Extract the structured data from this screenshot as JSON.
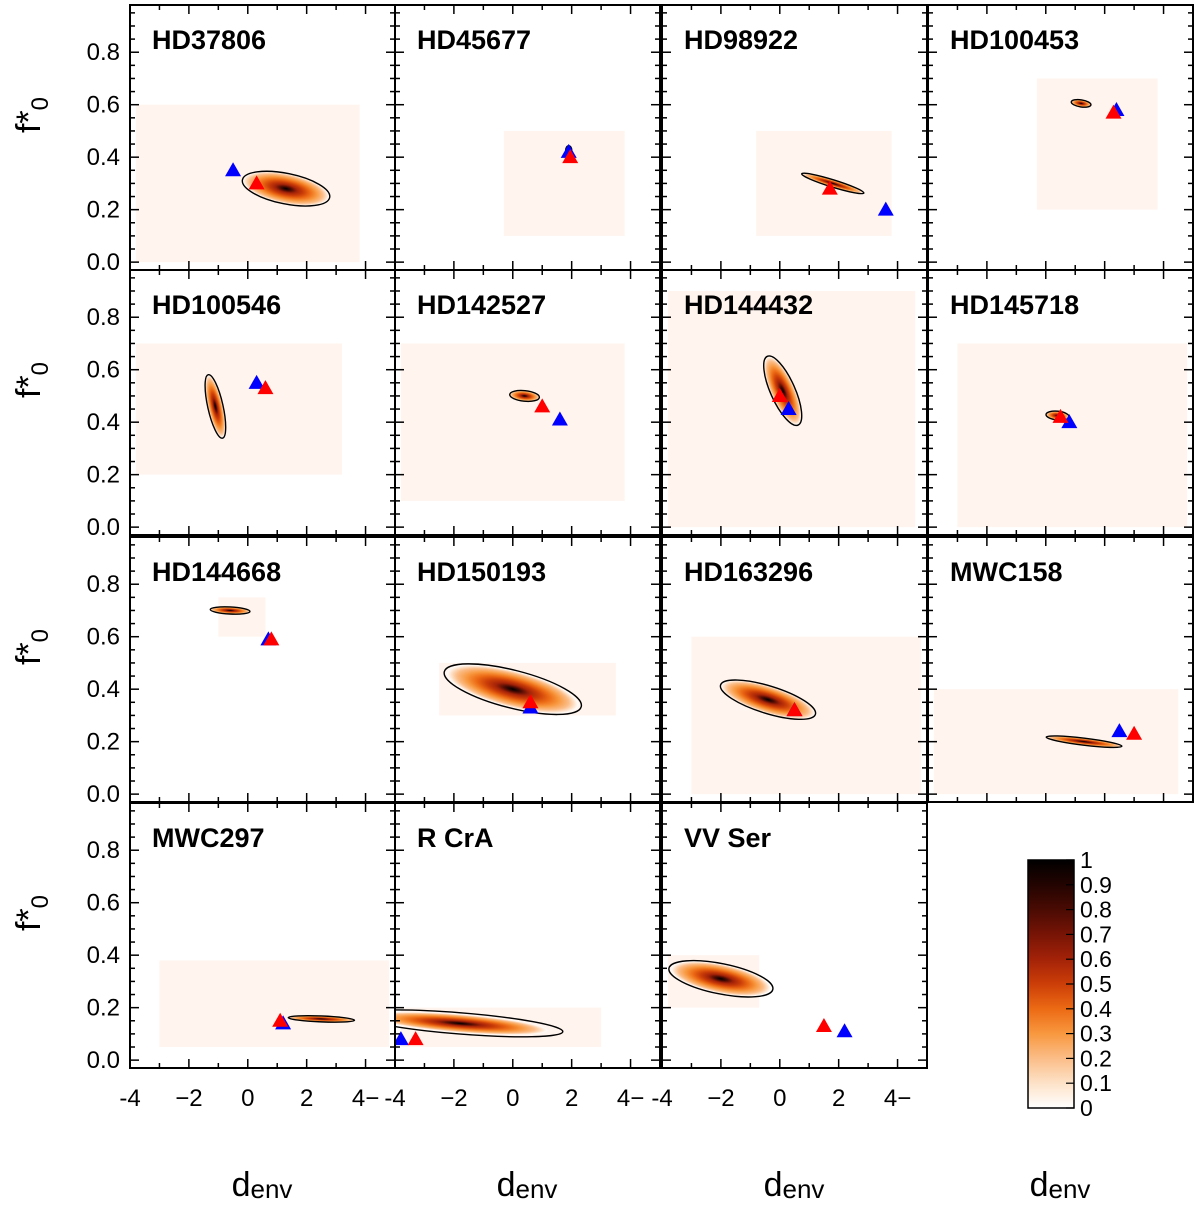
{
  "chart_data": {
    "type": "heatmap",
    "layout": {
      "rows": 4,
      "cols": 4
    },
    "xlabel": "d",
    "xlabel_sub": "env",
    "ylabel": "f*",
    "ylabel_sub": "0",
    "xlim": [
      -4,
      5
    ],
    "ylim": [
      -0.03,
      0.98
    ],
    "xticks": [
      -4,
      -2,
      0,
      2,
      4
    ],
    "xtick_labels": [
      "-4",
      "−2",
      "0",
      "2",
      "4−"
    ],
    "yticks": [
      0.0,
      0.2,
      0.4,
      0.6,
      0.8
    ],
    "ytick_labels": [
      "0.0",
      "0.2",
      "0.4",
      "0.6",
      "0.8"
    ],
    "grid": false,
    "colorbar": {
      "range": [
        0,
        1
      ],
      "ticks": [
        "0",
        "0.1",
        "0.2",
        "0.3",
        "0.4",
        "0.5",
        "0.6",
        "0.7",
        "0.8",
        "0.9",
        "1"
      ],
      "colors": [
        "#ffffff",
        "#fde2c8",
        "#fbbd88",
        "#f8983f",
        "#ec6a14",
        "#cc3e08",
        "#a32208",
        "#771406",
        "#4a0b03",
        "#230401",
        "#000000"
      ]
    },
    "markers": {
      "model_a_color": "#0000ff",
      "model_b_color": "#ff0000"
    },
    "panels": [
      {
        "name": "HD37806",
        "bg": [
          -3.8,
          3.8,
          0.0,
          0.6
        ],
        "peak": [
          1.3,
          0.28
        ],
        "sx": 1.3,
        "sy": 0.05,
        "rot": -0.2,
        "contour": 1.55,
        "blue": [
          -0.5,
          0.35
        ],
        "red": [
          0.3,
          0.3
        ]
      },
      {
        "name": "HD45677",
        "bg": [
          -0.3,
          3.8,
          0.1,
          0.5
        ],
        "peak": [
          1.9,
          0.425
        ],
        "sx": 0.1,
        "sy": 0.018,
        "rot": 0.0,
        "contour": 1.4,
        "blue": [
          1.9,
          0.42
        ],
        "red": [
          1.95,
          0.4
        ]
      },
      {
        "name": "HD98922",
        "bg": [
          -0.8,
          3.8,
          0.1,
          0.5
        ],
        "peak": [
          1.8,
          0.3
        ],
        "sx": 0.95,
        "sy": 0.012,
        "rot": -0.3,
        "contour": 1.55,
        "blue": [
          3.6,
          0.2
        ],
        "red": [
          1.7,
          0.28
        ]
      },
      {
        "name": "HD100453",
        "bg": [
          -0.3,
          3.8,
          0.2,
          0.7
        ],
        "peak": [
          1.2,
          0.605
        ],
        "sx": 0.3,
        "sy": 0.012,
        "rot": -0.15,
        "contour": 1.5,
        "blue": [
          2.4,
          0.58
        ],
        "red": [
          2.3,
          0.57
        ]
      },
      {
        "name": "HD100546",
        "bg": [
          -3.8,
          3.2,
          0.2,
          0.7
        ],
        "peak": [
          -1.1,
          0.46
        ],
        "sx": 0.95,
        "sy": 0.025,
        "rot": -1.35,
        "contour": 1.55,
        "blue": [
          0.3,
          0.55
        ],
        "red": [
          0.6,
          0.53
        ]
      },
      {
        "name": "HD142527",
        "bg": [
          -3.8,
          3.8,
          0.1,
          0.7
        ],
        "peak": [
          0.4,
          0.5
        ],
        "sx": 0.45,
        "sy": 0.018,
        "rot": -0.1,
        "contour": 1.5,
        "blue": [
          1.6,
          0.41
        ],
        "red": [
          1.0,
          0.46
        ]
      },
      {
        "name": "HD144432",
        "bg": [
          -3.8,
          4.6,
          0.0,
          0.9
        ],
        "peak": [
          0.1,
          0.52
        ],
        "sx": 1.1,
        "sy": 0.04,
        "rot": -1.15,
        "contour": 1.55,
        "blue": [
          0.3,
          0.45
        ],
        "red": [
          0.0,
          0.5
        ]
      },
      {
        "name": "HD145718",
        "bg": [
          -3.0,
          4.8,
          0.0,
          0.7
        ],
        "peak": [
          0.4,
          0.425
        ],
        "sx": 0.35,
        "sy": 0.015,
        "rot": -0.1,
        "contour": 1.5,
        "blue": [
          0.8,
          0.4
        ],
        "red": [
          0.5,
          0.42
        ]
      },
      {
        "name": "HD144668",
        "bg": [
          -1.0,
          0.6,
          0.6,
          0.75
        ],
        "peak": [
          -0.6,
          0.7
        ],
        "sx": 0.6,
        "sy": 0.012,
        "rot": -0.05,
        "contour": 1.5,
        "blue": [
          0.7,
          0.59
        ],
        "red": [
          0.8,
          0.59
        ]
      },
      {
        "name": "HD150193",
        "bg": [
          -2.5,
          3.5,
          0.3,
          0.5
        ],
        "peak": [
          0.0,
          0.4
        ],
        "sx": 2.0,
        "sy": 0.06,
        "rot": -0.25,
        "contour": 1.6,
        "blue": [
          0.6,
          0.33
        ],
        "red": [
          0.6,
          0.35
        ]
      },
      {
        "name": "HD163296",
        "bg": [
          -3.0,
          4.8,
          0.0,
          0.6
        ],
        "peak": [
          -0.4,
          0.36
        ],
        "sx": 1.45,
        "sy": 0.045,
        "rot": -0.3,
        "contour": 1.55,
        "blue": [
          0.5,
          0.32
        ],
        "red": [
          0.5,
          0.32
        ]
      },
      {
        "name": "MWC158",
        "bg": [
          -3.8,
          4.5,
          0.0,
          0.4
        ],
        "peak": [
          1.3,
          0.2
        ],
        "sx": 1.15,
        "sy": 0.012,
        "rot": -0.12,
        "contour": 1.5,
        "blue": [
          2.5,
          0.24
        ],
        "red": [
          3.0,
          0.23
        ]
      },
      {
        "name": "MWC297",
        "bg": [
          -3.0,
          4.8,
          0.05,
          0.38
        ],
        "peak": [
          2.5,
          0.157
        ],
        "sx": 1.0,
        "sy": 0.01,
        "rot": -0.04,
        "contour": 1.5,
        "blue": [
          1.2,
          0.14
        ],
        "red": [
          1.1,
          0.15
        ]
      },
      {
        "name": "R CrA",
        "bg": [
          -3.8,
          3.0,
          0.05,
          0.2
        ],
        "peak": [
          -1.8,
          0.14
        ],
        "sx": 2.6,
        "sy": 0.03,
        "rot": -0.08,
        "contour": 1.8,
        "blue": [
          -3.8,
          0.08
        ],
        "red": [
          -3.3,
          0.08
        ]
      },
      {
        "name": "VV Ser",
        "bg": [
          -3.8,
          -0.7,
          0.2,
          0.4
        ],
        "peak": [
          -2.0,
          0.31
        ],
        "sx": 1.5,
        "sy": 0.048,
        "rot": -0.2,
        "contour": 1.6,
        "blue": [
          2.2,
          0.11
        ],
        "red": [
          1.5,
          0.13
        ]
      }
    ]
  }
}
